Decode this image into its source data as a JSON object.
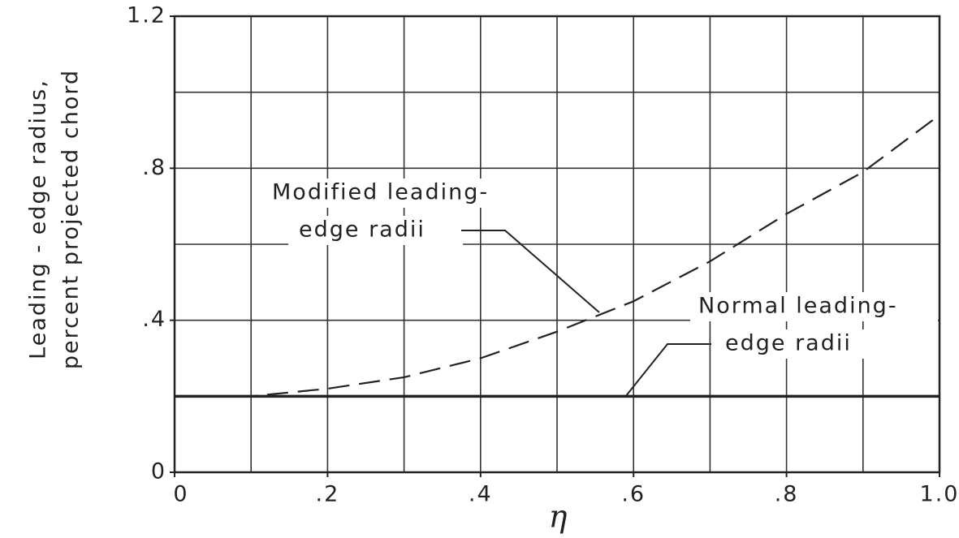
{
  "chart_data": {
    "type": "line",
    "ylabel": [
      "Leading - edge radius,",
      "percent projected chord"
    ],
    "xlabel": "η",
    "x": [
      0,
      0.1,
      0.2,
      0.3,
      0.4,
      0.5,
      0.6,
      0.7,
      0.8,
      0.9,
      1.0
    ],
    "series": [
      {
        "name": "Modified leading-edge radii",
        "color": "#222222",
        "dash": true,
        "values": [
          0.2,
          0.2,
          0.22,
          0.25,
          0.3,
          0.37,
          0.45,
          0.555,
          0.68,
          0.79,
          0.94
        ]
      },
      {
        "name": "Normal leading-edge radii",
        "color": "#222222",
        "dash": false,
        "values": [
          0.2,
          0.2,
          0.2,
          0.2,
          0.2,
          0.2,
          0.2,
          0.2,
          0.2,
          0.2,
          0.2
        ]
      }
    ],
    "annotations": [
      [
        "Modified leading-",
        "edge radii"
      ],
      [
        "Normal leading-",
        "edge radii"
      ]
    ],
    "xlim": [
      0,
      1.0
    ],
    "ylim": [
      0,
      1.2
    ],
    "xticks": [
      0,
      {
        "value": 0.2,
        "label": ".2"
      },
      {
        "value": 0.4,
        "label": ".4"
      },
      {
        "value": 0.6,
        "label": ".6"
      },
      {
        "value": 0.8,
        "label": ".8"
      },
      {
        "value": 1.0,
        "label": "1.0"
      }
    ],
    "yticks": [
      0,
      {
        "value": 0.4,
        "label": ".4"
      },
      {
        "value": 0.8,
        "label": ".8"
      },
      {
        "value": 1.2,
        "label": "1.2"
      }
    ],
    "xgrid": [
      0.1,
      0.2,
      0.3,
      0.4,
      0.5,
      0.6,
      0.7,
      0.8,
      0.9
    ],
    "ygrid": [
      0.2,
      0.4,
      0.6,
      0.8,
      1.0
    ],
    "grid": true
  }
}
